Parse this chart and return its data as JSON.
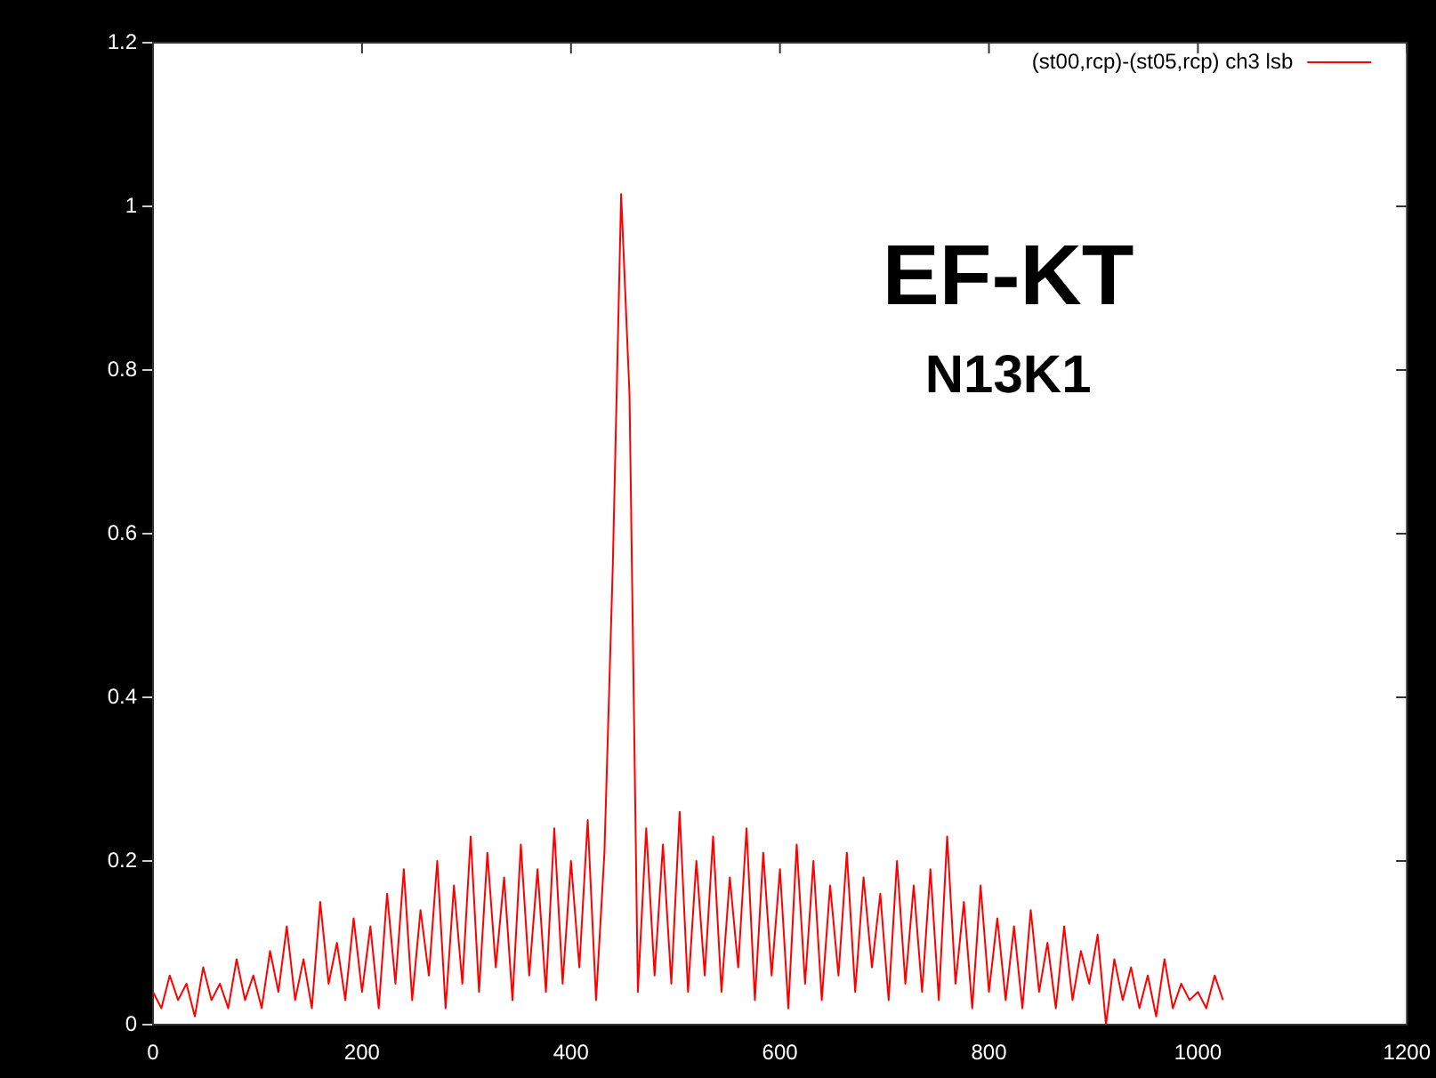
{
  "chart_data": {
    "type": "line",
    "x": [
      0,
      8,
      16,
      24,
      32,
      40,
      48,
      56,
      64,
      72,
      80,
      88,
      96,
      104,
      112,
      120,
      128,
      136,
      144,
      152,
      160,
      168,
      176,
      184,
      192,
      200,
      208,
      216,
      224,
      232,
      240,
      248,
      256,
      264,
      272,
      280,
      288,
      296,
      304,
      312,
      320,
      328,
      336,
      344,
      352,
      360,
      368,
      376,
      384,
      392,
      400,
      408,
      416,
      424,
      432,
      440,
      448,
      456,
      464,
      472,
      480,
      488,
      496,
      504,
      512,
      520,
      528,
      536,
      544,
      552,
      560,
      568,
      576,
      584,
      592,
      600,
      608,
      616,
      624,
      632,
      640,
      648,
      656,
      664,
      672,
      680,
      688,
      696,
      704,
      712,
      720,
      728,
      736,
      744,
      752,
      760,
      768,
      776,
      784,
      792,
      800,
      808,
      816,
      824,
      832,
      840,
      848,
      856,
      864,
      872,
      880,
      888,
      896,
      904,
      912,
      920,
      928,
      936,
      944,
      952,
      960,
      968,
      976,
      984,
      992,
      1000,
      1008,
      1016,
      1024
    ],
    "series": [
      {
        "name": "(st00,rcp)-(st05,rcp) ch3 lsb",
        "color": "#ff0000",
        "values": [
          0.04,
          0.02,
          0.06,
          0.03,
          0.05,
          0.01,
          0.07,
          0.03,
          0.05,
          0.02,
          0.08,
          0.03,
          0.06,
          0.02,
          0.09,
          0.04,
          0.12,
          0.03,
          0.08,
          0.02,
          0.15,
          0.05,
          0.1,
          0.03,
          0.13,
          0.04,
          0.12,
          0.02,
          0.16,
          0.05,
          0.19,
          0.03,
          0.14,
          0.06,
          0.2,
          0.02,
          0.17,
          0.05,
          0.23,
          0.04,
          0.21,
          0.07,
          0.18,
          0.03,
          0.22,
          0.06,
          0.19,
          0.04,
          0.24,
          0.05,
          0.2,
          0.07,
          0.25,
          0.03,
          0.21,
          0.56,
          1.015,
          0.77,
          0.04,
          0.24,
          0.06,
          0.22,
          0.05,
          0.26,
          0.04,
          0.2,
          0.06,
          0.23,
          0.04,
          0.18,
          0.07,
          0.24,
          0.03,
          0.21,
          0.06,
          0.19,
          0.02,
          0.22,
          0.05,
          0.2,
          0.03,
          0.17,
          0.06,
          0.21,
          0.04,
          0.18,
          0.07,
          0.16,
          0.03,
          0.2,
          0.05,
          0.17,
          0.04,
          0.19,
          0.03,
          0.23,
          0.05,
          0.15,
          0.02,
          0.17,
          0.04,
          0.13,
          0.03,
          0.12,
          0.02,
          0.14,
          0.04,
          0.1,
          0.02,
          0.12,
          0.03,
          0.09,
          0.05,
          0.11,
          0.0,
          0.08,
          0.03,
          0.07,
          0.02,
          0.06,
          0.01,
          0.08,
          0.02,
          0.05,
          0.03,
          0.04,
          0.02,
          0.06,
          0.03
        ]
      }
    ],
    "xlim": [
      0,
      1200
    ],
    "xticks": [
      0,
      200,
      400,
      600,
      800,
      1000,
      1200
    ],
    "ylim": [
      0,
      1.2
    ],
    "yticks": [
      0,
      0.2,
      0.4,
      0.6,
      0.8,
      1,
      1.2
    ],
    "annotations": [
      "EF-KT",
      "N13K1"
    ],
    "legend": "top right",
    "grid": false,
    "marker": "none",
    "line_style": "solid"
  }
}
